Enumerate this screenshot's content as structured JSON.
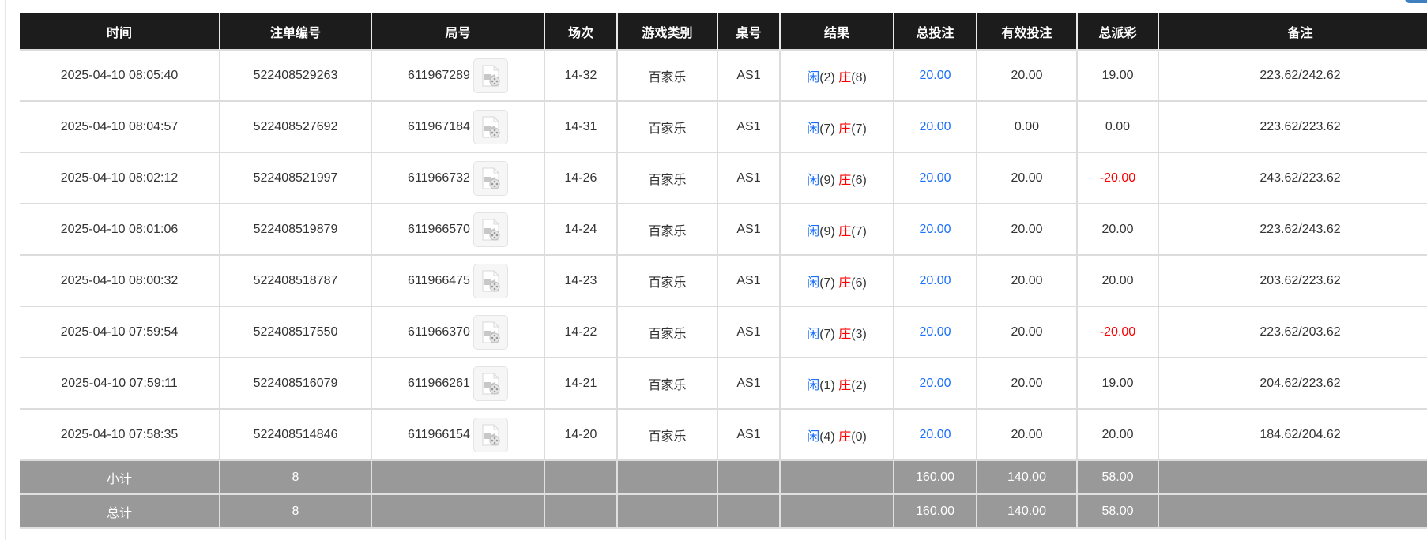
{
  "headers": [
    "时间",
    "注单编号",
    "局号",
    "场次",
    "游戏类别",
    "桌号",
    "结果",
    "总投注",
    "有效投注",
    "总派彩",
    "备注"
  ],
  "colors": {
    "player": "#1a6fff",
    "banker": "#ff0000",
    "negative": "#ff0000",
    "header_bg": "#1c1c1c",
    "summary_bg": "#999999"
  },
  "rows": [
    {
      "time": "2025-04-10 08:05:40",
      "bet_id": "522408529263",
      "round": "611967289",
      "session": "14-32",
      "game": "百家乐",
      "table": "AS1",
      "player_label": "闲",
      "player_score": "(2)",
      "banker_label": "庄",
      "banker_score": "(8)",
      "total_bet": "20.00",
      "valid_bet": "20.00",
      "payout": "19.00",
      "payout_negative": false,
      "note": "223.62/242.62"
    },
    {
      "time": "2025-04-10 08:04:57",
      "bet_id": "522408527692",
      "round": "611967184",
      "session": "14-31",
      "game": "百家乐",
      "table": "AS1",
      "player_label": "闲",
      "player_score": "(7)",
      "banker_label": "庄",
      "banker_score": "(7)",
      "total_bet": "20.00",
      "valid_bet": "0.00",
      "payout": "0.00",
      "payout_negative": false,
      "note": "223.62/223.62"
    },
    {
      "time": "2025-04-10 08:02:12",
      "bet_id": "522408521997",
      "round": "611966732",
      "session": "14-26",
      "game": "百家乐",
      "table": "AS1",
      "player_label": "闲",
      "player_score": "(9)",
      "banker_label": "庄",
      "banker_score": "(6)",
      "total_bet": "20.00",
      "valid_bet": "20.00",
      "payout": "-20.00",
      "payout_negative": true,
      "note": "243.62/223.62"
    },
    {
      "time": "2025-04-10 08:01:06",
      "bet_id": "522408519879",
      "round": "611966570",
      "session": "14-24",
      "game": "百家乐",
      "table": "AS1",
      "player_label": "闲",
      "player_score": "(9)",
      "banker_label": "庄",
      "banker_score": "(7)",
      "total_bet": "20.00",
      "valid_bet": "20.00",
      "payout": "20.00",
      "payout_negative": false,
      "note": "223.62/243.62"
    },
    {
      "time": "2025-04-10 08:00:32",
      "bet_id": "522408518787",
      "round": "611966475",
      "session": "14-23",
      "game": "百家乐",
      "table": "AS1",
      "player_label": "闲",
      "player_score": "(7)",
      "banker_label": "庄",
      "banker_score": "(6)",
      "total_bet": "20.00",
      "valid_bet": "20.00",
      "payout": "20.00",
      "payout_negative": false,
      "note": "203.62/223.62"
    },
    {
      "time": "2025-04-10 07:59:54",
      "bet_id": "522408517550",
      "round": "611966370",
      "session": "14-22",
      "game": "百家乐",
      "table": "AS1",
      "player_label": "闲",
      "player_score": "(7)",
      "banker_label": "庄",
      "banker_score": "(3)",
      "total_bet": "20.00",
      "valid_bet": "20.00",
      "payout": "-20.00",
      "payout_negative": true,
      "note": "223.62/203.62"
    },
    {
      "time": "2025-04-10 07:59:11",
      "bet_id": "522408516079",
      "round": "611966261",
      "session": "14-21",
      "game": "百家乐",
      "table": "AS1",
      "player_label": "闲",
      "player_score": "(1)",
      "banker_label": "庄",
      "banker_score": "(2)",
      "total_bet": "20.00",
      "valid_bet": "20.00",
      "payout": "19.00",
      "payout_negative": false,
      "note": "204.62/223.62"
    },
    {
      "time": "2025-04-10 07:58:35",
      "bet_id": "522408514846",
      "round": "611966154",
      "session": "14-20",
      "game": "百家乐",
      "table": "AS1",
      "player_label": "闲",
      "player_score": "(4)",
      "banker_label": "庄",
      "banker_score": "(0)",
      "total_bet": "20.00",
      "valid_bet": "20.00",
      "payout": "20.00",
      "payout_negative": false,
      "note": "184.62/204.62"
    }
  ],
  "summary": [
    {
      "label": "小计",
      "count": "8",
      "total_bet": "160.00",
      "valid_bet": "140.00",
      "payout": "58.00"
    },
    {
      "label": "总计",
      "count": "8",
      "total_bet": "160.00",
      "valid_bet": "140.00",
      "payout": "58.00"
    }
  ]
}
